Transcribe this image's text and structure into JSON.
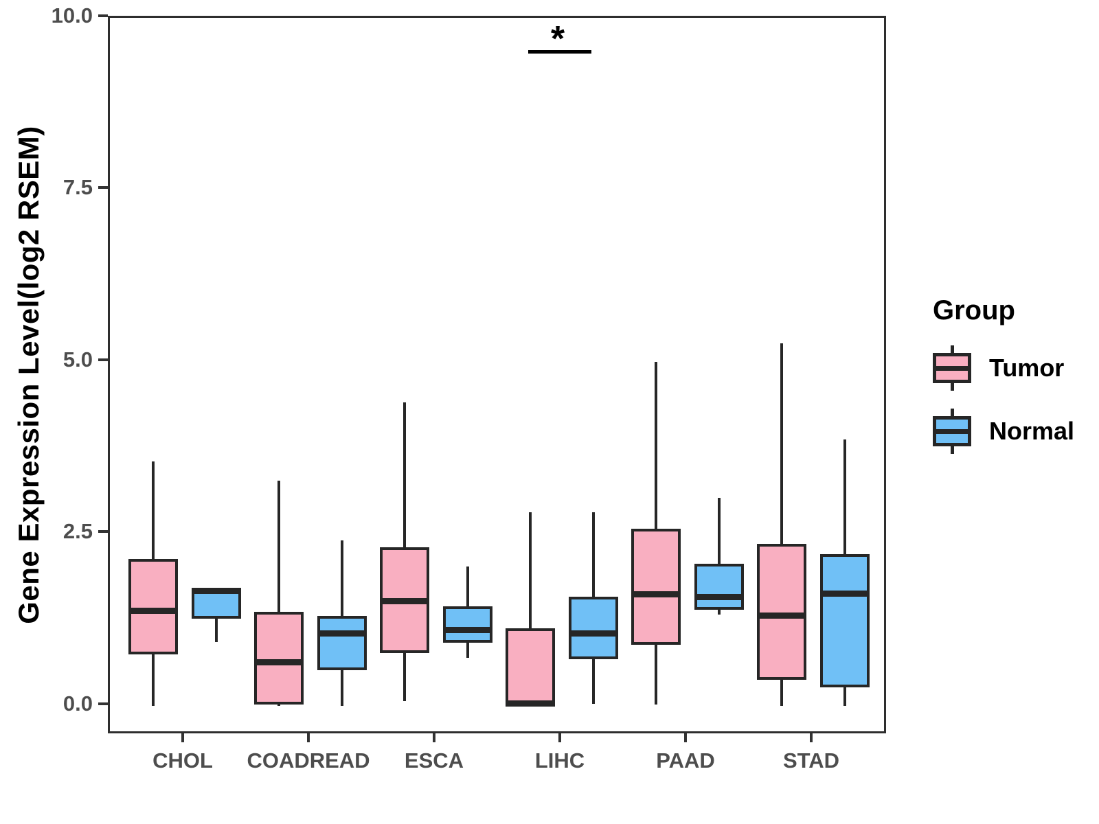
{
  "axis": {
    "ylabel": "Gene Expression Level(log2 RSEM)",
    "yticks": [
      {
        "label": "10.0",
        "value": 10.0
      },
      {
        "label": "7.5",
        "value": 7.5
      },
      {
        "label": "5.0",
        "value": 5.0
      },
      {
        "label": "2.5",
        "value": 2.5
      },
      {
        "label": "0.0",
        "value": 0.0
      }
    ]
  },
  "legend": {
    "title": "Group",
    "entries": [
      {
        "label": "Tumor",
        "color": "#F9AFC1"
      },
      {
        "label": "Normal",
        "color": "#70C0F6"
      }
    ]
  },
  "colors": {
    "tumor_fill": "#F9AFC1",
    "normal_fill": "#70C0F6",
    "box_border": "#262626",
    "panel_border": "#2e2e2e",
    "tick_text": "#4d4d4d"
  },
  "chart_data": {
    "type": "boxplot",
    "title": "",
    "xlabel": "",
    "ylabel": "Gene Expression Level(log2 RSEM)",
    "ylim": [
      -0.43,
      10.0
    ],
    "grid": false,
    "legend_position": "right",
    "categories": [
      "CHOL",
      "COADREAD",
      "ESCA",
      "LIHC",
      "PAAD",
      "STAD"
    ],
    "series": [
      {
        "name": "Tumor",
        "color": "#F9AFC1",
        "boxes": [
          {
            "category": "CHOL",
            "min": 0.0,
            "q1": 0.75,
            "median": 1.38,
            "q3": 2.14,
            "max": 3.55
          },
          {
            "category": "COADREAD",
            "min": 0.0,
            "q1": 0.02,
            "median": 0.63,
            "q3": 1.37,
            "max": 3.27
          },
          {
            "category": "ESCA",
            "min": 0.07,
            "q1": 0.77,
            "median": 1.52,
            "q3": 2.3,
            "max": 4.41
          },
          {
            "category": "LIHC",
            "min": 0.0,
            "q1": 0.0,
            "median": 0.03,
            "q3": 1.13,
            "max": 2.81
          },
          {
            "category": "PAAD",
            "min": 0.02,
            "q1": 0.89,
            "median": 1.62,
            "q3": 2.57,
            "max": 5.0
          },
          {
            "category": "STAD",
            "min": 0.0,
            "q1": 0.38,
            "median": 1.31,
            "q3": 2.35,
            "max": 5.27
          }
        ]
      },
      {
        "name": "Normal",
        "color": "#70C0F6",
        "boxes": [
          {
            "category": "CHOL",
            "min": 0.93,
            "q1": 1.27,
            "median": 1.67,
            "q3": 1.72,
            "max": 1.72
          },
          {
            "category": "COADREAD",
            "min": 0.0,
            "q1": 0.52,
            "median": 1.05,
            "q3": 1.31,
            "max": 2.4
          },
          {
            "category": "ESCA",
            "min": 0.7,
            "q1": 0.92,
            "median": 1.1,
            "q3": 1.45,
            "max": 2.03
          },
          {
            "category": "LIHC",
            "min": 0.03,
            "q1": 0.68,
            "median": 1.05,
            "q3": 1.59,
            "max": 2.81
          },
          {
            "category": "PAAD",
            "min": 1.33,
            "q1": 1.4,
            "median": 1.58,
            "q3": 2.07,
            "max": 3.02
          },
          {
            "category": "STAD",
            "min": 0.0,
            "q1": 0.27,
            "median": 1.63,
            "q3": 2.2,
            "max": 3.87
          }
        ]
      }
    ],
    "significance": {
      "category": "LIHC",
      "label": "*",
      "bar_y": 9.5,
      "between": [
        "Tumor",
        "Normal"
      ]
    }
  }
}
